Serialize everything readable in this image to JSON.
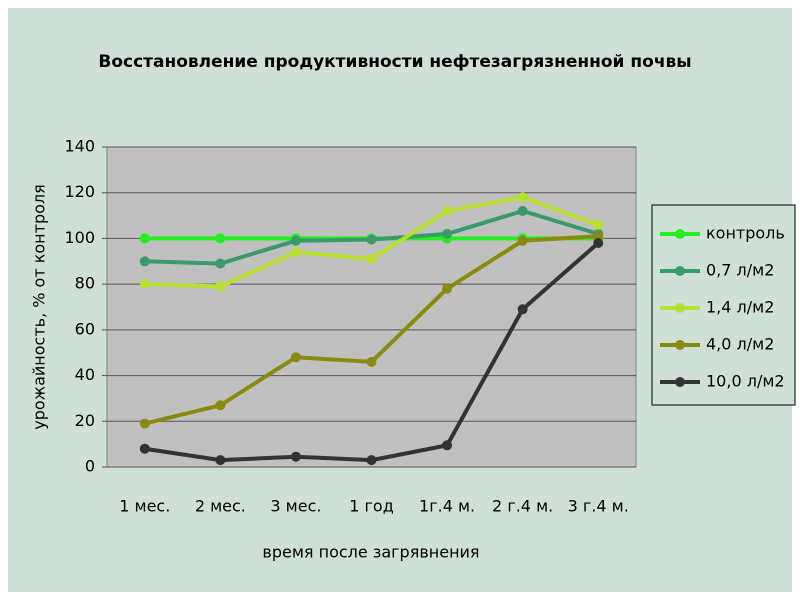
{
  "chart_data": {
    "type": "line",
    "title": "Восстановление продуктивности нефтезагрязненной  почвы",
    "x_label": "время после загрявнения",
    "y_label": "урожайность, % от контроля",
    "categories": [
      "1 мес.",
      "2 мес.",
      "3 мес.",
      "1 год",
      "1г.4 м.",
      "2 г.4 м.",
      "3 г.4 м."
    ],
    "series": [
      {
        "name": "контроль",
        "color": "#22ee22",
        "values": [
          100,
          100,
          100,
          100,
          100,
          100,
          100
        ]
      },
      {
        "name": "0,7 л/м2",
        "color": "#3a9a6a",
        "values": [
          90,
          89,
          99,
          99.5,
          102,
          112,
          102
        ]
      },
      {
        "name": "1,4 л/м2",
        "color": "#b8e030",
        "values": [
          80,
          79,
          94,
          91,
          112,
          118,
          106
        ]
      },
      {
        "name": "4,0 л/м2",
        "color": "#8a8a10",
        "values": [
          19,
          27,
          48,
          46,
          78,
          99,
          101
        ]
      },
      {
        "name": "10,0 л/м2",
        "color": "#333333",
        "values": [
          8,
          3,
          4.5,
          3,
          9.5,
          69,
          98
        ]
      }
    ],
    "ylim": [
      0,
      140
    ],
    "yticks": [
      0,
      20,
      40,
      60,
      80,
      100,
      120,
      140
    ],
    "grid": true,
    "legend": "right"
  }
}
